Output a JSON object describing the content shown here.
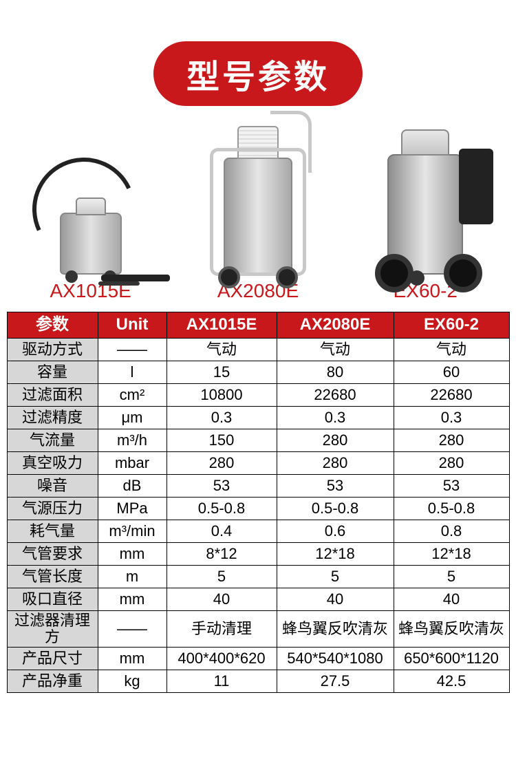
{
  "title": "型号参数",
  "colors": {
    "accent": "#c8181b",
    "header_bg": "#c8181b",
    "header_fg": "#ffffff",
    "row_label_bg": "#d7d7d7",
    "border": "#000000",
    "bg": "#ffffff"
  },
  "products": [
    {
      "id": "AX1015E",
      "label": "AX1015E"
    },
    {
      "id": "AX2080E",
      "label": "AX2080E"
    },
    {
      "id": "EX60-2",
      "label": "EX60-2"
    }
  ],
  "table": {
    "headers": [
      "参数",
      "Unit",
      "AX1015E",
      "AX2080E",
      "EX60-2"
    ],
    "rows": [
      {
        "param": "驱动方式",
        "unit": "——",
        "v": [
          "气动",
          "气动",
          "气动"
        ]
      },
      {
        "param": "容量",
        "unit": "l",
        "v": [
          "15",
          "80",
          "60"
        ]
      },
      {
        "param": "过滤面积",
        "unit": "cm²",
        "v": [
          "10800",
          "22680",
          "22680"
        ]
      },
      {
        "param": "过滤精度",
        "unit": "μm",
        "v": [
          "0.3",
          "0.3",
          "0.3"
        ]
      },
      {
        "param": "气流量",
        "unit": "m³/h",
        "v": [
          "150",
          "280",
          "280"
        ]
      },
      {
        "param": "真空吸力",
        "unit": "mbar",
        "v": [
          "280",
          "280",
          "280"
        ]
      },
      {
        "param": "噪音",
        "unit": "dB",
        "v": [
          "53",
          "53",
          "53"
        ]
      },
      {
        "param": "气源压力",
        "unit": "MPa",
        "v": [
          "0.5-0.8",
          "0.5-0.8",
          "0.5-0.8"
        ]
      },
      {
        "param": "耗气量",
        "unit": "m³/min",
        "v": [
          "0.4",
          "0.6",
          "0.8"
        ]
      },
      {
        "param": "气管要求",
        "unit": "mm",
        "v": [
          "8*12",
          "12*18",
          "12*18"
        ]
      },
      {
        "param": "气管长度",
        "unit": "m",
        "v": [
          "5",
          "5",
          "5"
        ]
      },
      {
        "param": "吸口直径",
        "unit": "mm",
        "v": [
          "40",
          "40",
          "40"
        ]
      },
      {
        "param": "过滤器清理方",
        "unit": "——",
        "v": [
          "手动清理",
          "蜂鸟翼反吹清灰",
          "蜂鸟翼反吹清灰"
        ]
      },
      {
        "param": "产品尺寸",
        "unit": "mm",
        "v": [
          "400*400*620",
          "540*540*1080",
          "650*600*1120"
        ]
      },
      {
        "param": "产品净重",
        "unit": "kg",
        "v": [
          "11",
          "27.5",
          "42.5"
        ]
      }
    ]
  }
}
